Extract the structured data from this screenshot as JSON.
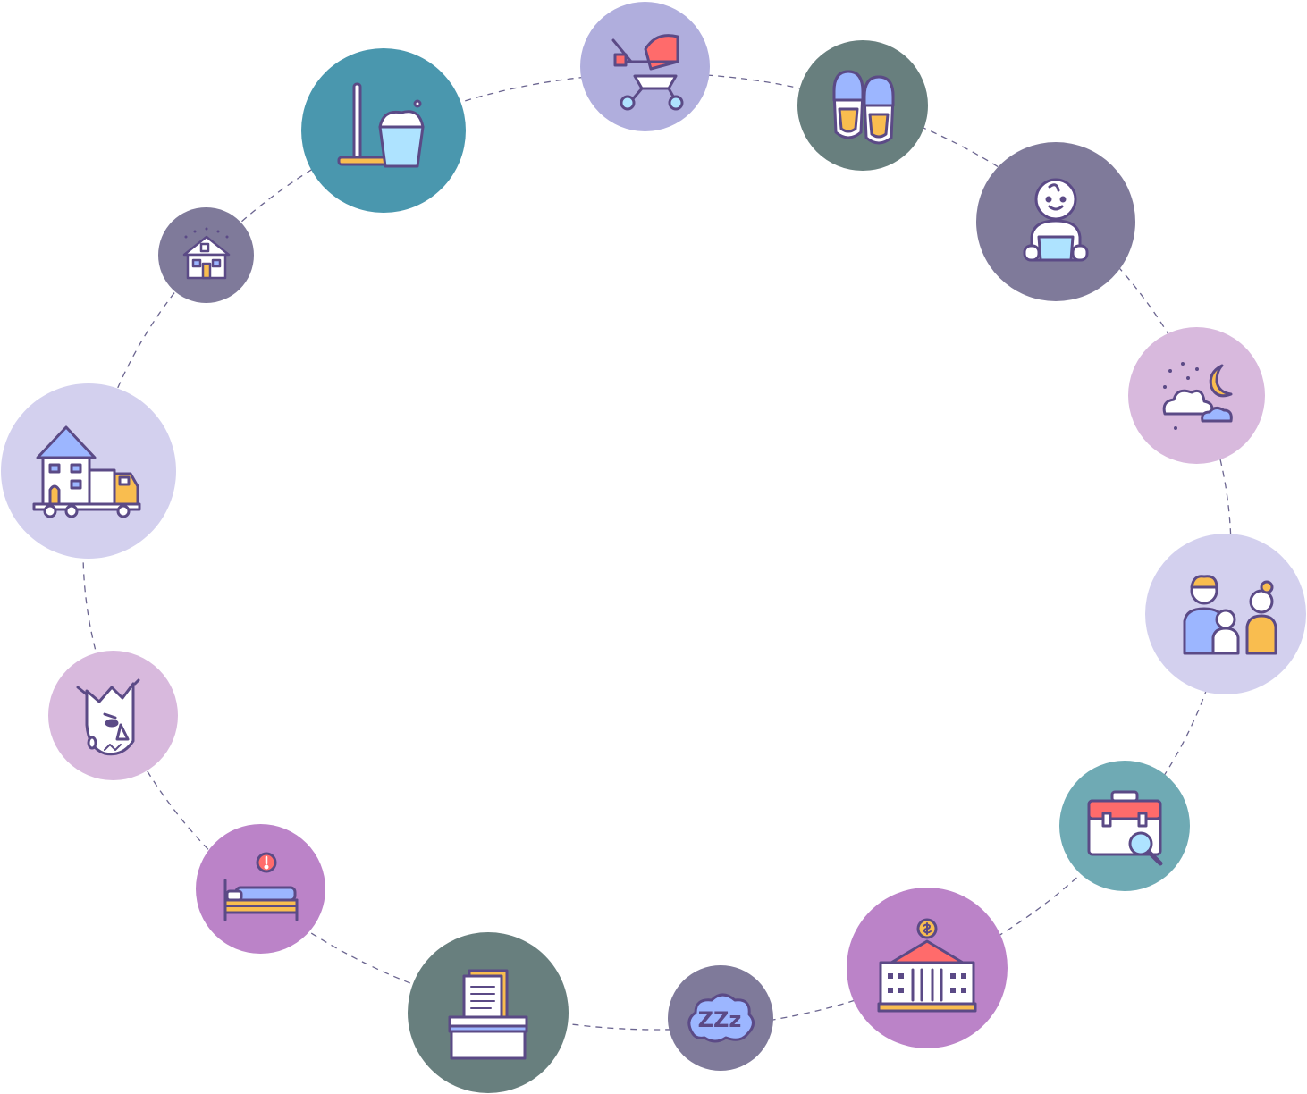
{
  "colors": {
    "stroke": "#5b4a86",
    "ring": "#6b6590",
    "blue": "#9cb6ff",
    "light_blue": "#aee3ff",
    "yellow": "#f9bd4f",
    "red": "#ff6b6b",
    "white": "#ffffff",
    "bubble_teal": "#4a97ae",
    "bubble_lavender": "#b0aedd",
    "bubble_slate": "#687f7e",
    "bubble_grey_purple": "#7f7a9a",
    "bubble_pink": "#d8b9dd",
    "bubble_pale": "#d3d0ee",
    "bubble_aqua": "#6faab4",
    "bubble_orchid": "#bb83c8"
  },
  "icons": [
    {
      "name": "mop-bucket-icon",
      "color": "#4a97ae"
    },
    {
      "name": "baby-stroller-icon",
      "color": "#b0aedd"
    },
    {
      "name": "slippers-icon",
      "color": "#687f7e"
    },
    {
      "name": "baby-icon",
      "color": "#7f7a9a"
    },
    {
      "name": "night-sky-icon",
      "color": "#d8b9dd"
    },
    {
      "name": "family-icon",
      "color": "#d3d0ee"
    },
    {
      "name": "job-search-icon",
      "color": "#6faab4"
    },
    {
      "name": "bank-icon",
      "color": "#bb83c8"
    },
    {
      "name": "sleep-cloud-icon",
      "color": "#7f7a9a"
    },
    {
      "name": "documents-box-icon",
      "color": "#687f7e"
    },
    {
      "name": "bed-alert-icon",
      "color": "#bb83c8"
    },
    {
      "name": "angry-face-icon",
      "color": "#d8b9dd"
    },
    {
      "name": "moving-house-truck-icon",
      "color": "#d3d0ee"
    },
    {
      "name": "snowy-house-icon",
      "color": "#7f7a9a"
    }
  ],
  "sleep_text": "ZZz"
}
